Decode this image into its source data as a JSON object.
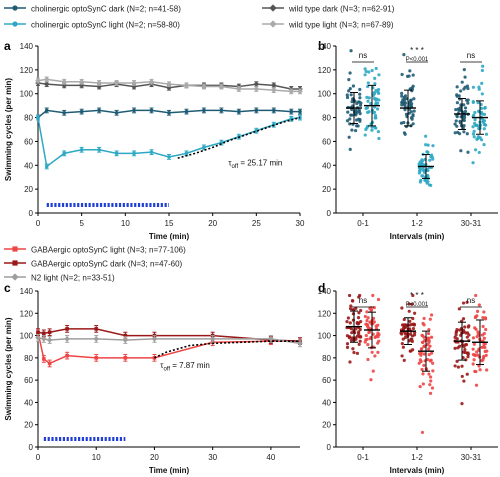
{
  "legend_top": [
    {
      "label": "cholinergic optoSynC dark (N=2; n=41-58)",
      "color": "#1f5c73",
      "marker": "circle"
    },
    {
      "label": "wild type dark (N=3; n=62-91)",
      "color": "#555555",
      "marker": "diamond"
    },
    {
      "label": "cholinergic optoSynC light (N=2; n=58-80)",
      "color": "#2ea8c4",
      "marker": "circle"
    },
    {
      "label": "wild type light (N=3; n=67-89)",
      "color": "#aaaaaa",
      "marker": "diamond"
    }
  ],
  "legend_bottom": [
    {
      "label": "GABAergic optoSynC light (N=3; n=77-106)",
      "color": "#ee4545",
      "marker": "square"
    },
    {
      "label": "GABAergic optoSynC dark (N=3; n=47-60)",
      "color": "#9b1818",
      "marker": "square"
    },
    {
      "label": "N2 light (N=2; n=33-51)",
      "color": "#9e9e9e",
      "marker": "diamond"
    }
  ],
  "chart_data": [
    {
      "panel": "a",
      "type": "line",
      "xlabel": "Time (min)",
      "ylabel": "Swimming cycles (per min)",
      "xlim": [
        0,
        30
      ],
      "ylim": [
        0,
        140
      ],
      "xticks": [
        0,
        5,
        10,
        15,
        20,
        25,
        30
      ],
      "yticks": [
        0,
        20,
        40,
        60,
        80,
        100,
        120,
        140
      ],
      "light_stimulus": {
        "start": 1,
        "end": 15
      },
      "annotation": {
        "prefix": "τ",
        "sub": "off",
        "text": " = 25.17 min"
      },
      "fit": {
        "x": [
          16,
          18,
          20,
          22,
          24,
          26,
          28,
          30
        ],
        "y": [
          46,
          50,
          55,
          61,
          66,
          71,
          76,
          80
        ]
      },
      "series": [
        {
          "name": "cholinergic optoSynC dark (N=2; n=41-58)",
          "color": "#1f5c73",
          "marker": "circle",
          "x": [
            0,
            1,
            3,
            5,
            7,
            9,
            11,
            13,
            15,
            17,
            19,
            21,
            23,
            25,
            27,
            29,
            30
          ],
          "y": [
            80,
            86,
            84,
            85,
            86,
            84,
            86,
            86,
            84,
            85,
            86,
            86,
            85,
            86,
            86,
            85,
            85
          ],
          "err": 2
        },
        {
          "name": "wild type dark (N=3; n=62-91)",
          "color": "#555555",
          "marker": "diamond",
          "x": [
            0,
            1,
            3,
            5,
            7,
            9,
            11,
            13,
            15,
            17,
            19,
            21,
            23,
            25,
            27,
            29,
            30
          ],
          "y": [
            109,
            108,
            107,
            107,
            106,
            108,
            106,
            108,
            105,
            107,
            107,
            107,
            106,
            108,
            107,
            104,
            104
          ],
          "err": 2
        },
        {
          "name": "cholinergic optoSynC light (N=2; n=58-80)",
          "color": "#2ea8c4",
          "marker": "circle",
          "x": [
            0,
            1,
            3,
            5,
            7,
            9,
            11,
            13,
            15,
            17,
            19,
            21,
            23,
            25,
            27,
            29,
            30
          ],
          "y": [
            80,
            39,
            50,
            53,
            53,
            50,
            50,
            51,
            47,
            50,
            55,
            59,
            64,
            69,
            74,
            79,
            80
          ],
          "err": 2
        },
        {
          "name": "wild type light (N=3; n=67-89)",
          "color": "#aaaaaa",
          "marker": "diamond",
          "x": [
            0,
            1,
            3,
            5,
            7,
            9,
            11,
            13,
            15,
            17,
            19,
            21,
            23,
            25,
            27,
            29,
            30
          ],
          "y": [
            111,
            112,
            110,
            110,
            109,
            109,
            109,
            110,
            108,
            107,
            106,
            106,
            104,
            104,
            103,
            102,
            102
          ],
          "err": 2
        }
      ]
    },
    {
      "panel": "b",
      "type": "scatter",
      "xlabel": "Intervals (min)",
      "ylabel": "",
      "ylim": [
        0,
        140
      ],
      "yticks": [
        0,
        20,
        40,
        60,
        80,
        100,
        120,
        140
      ],
      "categories": [
        "0-1",
        "1-2",
        "30-31"
      ],
      "groups": [
        {
          "category": "0-1",
          "condition": "dark",
          "color": "#1f5c73",
          "mean": 88,
          "sd": 13
        },
        {
          "category": "0-1",
          "condition": "light",
          "color": "#2ea8c4",
          "mean": 90,
          "sd": 17
        },
        {
          "category": "1-2",
          "condition": "dark",
          "color": "#1f5c73",
          "mean": 88,
          "sd": 15
        },
        {
          "category": "1-2",
          "condition": "light",
          "color": "#2ea8c4",
          "mean": 39,
          "sd": 10
        },
        {
          "category": "30-31",
          "condition": "dark",
          "color": "#1f5c73",
          "mean": 83,
          "sd": 13
        },
        {
          "category": "30-31",
          "condition": "light",
          "color": "#2ea8c4",
          "mean": 80,
          "sd": 14
        }
      ],
      "significance": [
        {
          "category": "0-1",
          "label": "ns"
        },
        {
          "category": "1-2",
          "label": "* * *",
          "p": "P<0.001"
        },
        {
          "category": "30-31",
          "label": "ns"
        }
      ]
    },
    {
      "panel": "c",
      "type": "line",
      "xlabel": "Time (min)",
      "ylabel": "Swimming cycles (per min)",
      "xlim": [
        0,
        45
      ],
      "ylim": [
        0,
        140
      ],
      "xticks": [
        0,
        10,
        20,
        30,
        40
      ],
      "yticks": [
        0,
        20,
        40,
        60,
        80,
        100,
        120,
        140
      ],
      "light_stimulus": {
        "start": 1,
        "end": 15
      },
      "annotation": {
        "prefix": "τ",
        "sub": "off",
        "text": " = 7.87 min"
      },
      "fit": {
        "x": [
          20,
          22,
          24,
          26,
          28,
          30,
          35,
          40,
          45
        ],
        "y": [
          80,
          85,
          88,
          91,
          92,
          93,
          94,
          95,
          95
        ]
      },
      "series": [
        {
          "name": "GABAergic optoSynC light (N=3; n=77-106)",
          "color": "#ee4545",
          "marker": "square",
          "x": [
            0,
            1,
            2,
            5,
            10,
            15,
            20,
            30,
            40,
            45
          ],
          "y": [
            103,
            79,
            75,
            82,
            80,
            80,
            80,
            94,
            95,
            95
          ],
          "err": 3
        },
        {
          "name": "GABAergic optoSynC dark (N=3; n=47-60)",
          "color": "#9b1818",
          "marker": "square",
          "x": [
            0,
            1,
            2,
            5,
            10,
            15,
            20,
            30,
            40,
            45
          ],
          "y": [
            103,
            102,
            103,
            106,
            106,
            100,
            100,
            100,
            96,
            95
          ],
          "err": 3
        },
        {
          "name": "N2 light (N=2; n=33-51)",
          "color": "#9e9e9e",
          "marker": "diamond",
          "x": [
            0,
            1,
            2,
            5,
            10,
            15,
            20,
            30,
            40,
            45
          ],
          "y": [
            98,
            97,
            96,
            97,
            97,
            96,
            97,
            97,
            97,
            93
          ],
          "err": 3
        }
      ]
    },
    {
      "panel": "d",
      "type": "scatter",
      "xlabel": "Intervals (min)",
      "ylabel": "",
      "ylim": [
        0,
        140
      ],
      "yticks": [
        0,
        20,
        40,
        60,
        80,
        100,
        120,
        140
      ],
      "categories": [
        "0-1",
        "1-2",
        "30-31"
      ],
      "groups": [
        {
          "category": "0-1",
          "condition": "dark",
          "color": "#9b1818",
          "mean": 108,
          "sd": 14
        },
        {
          "category": "0-1",
          "condition": "light",
          "color": "#ee4545",
          "mean": 105,
          "sd": 16
        },
        {
          "category": "1-2",
          "condition": "dark",
          "color": "#9b1818",
          "mean": 104,
          "sd": 12
        },
        {
          "category": "1-2",
          "condition": "light",
          "color": "#ee4545",
          "mean": 86,
          "sd": 18
        },
        {
          "category": "30-31",
          "condition": "dark",
          "color": "#9b1818",
          "mean": 95,
          "sd": 17
        },
        {
          "category": "30-31",
          "condition": "light",
          "color": "#ee4545",
          "mean": 94,
          "sd": 20
        }
      ],
      "significance": [
        {
          "category": "0-1",
          "label": "ns"
        },
        {
          "category": "1-2",
          "label": "* * *",
          "p": "P<0.001"
        },
        {
          "category": "30-31",
          "label": "ns"
        }
      ]
    }
  ]
}
